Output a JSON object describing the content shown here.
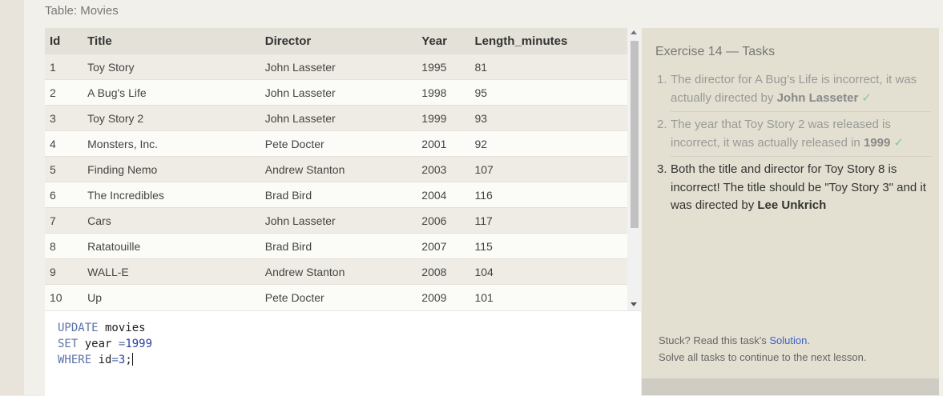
{
  "table_caption": "Table: Movies",
  "columns": [
    "Id",
    "Title",
    "Director",
    "Year",
    "Length_minutes"
  ],
  "rows": [
    [
      "1",
      "Toy Story",
      "John Lasseter",
      "1995",
      "81"
    ],
    [
      "2",
      "A Bug's Life",
      "John Lasseter",
      "1998",
      "95"
    ],
    [
      "3",
      "Toy Story 2",
      "John Lasseter",
      "1999",
      "93"
    ],
    [
      "4",
      "Monsters, Inc.",
      "Pete Docter",
      "2001",
      "92"
    ],
    [
      "5",
      "Finding Nemo",
      "Andrew Stanton",
      "2003",
      "107"
    ],
    [
      "6",
      "The Incredibles",
      "Brad Bird",
      "2004",
      "116"
    ],
    [
      "7",
      "Cars",
      "John Lasseter",
      "2006",
      "117"
    ],
    [
      "8",
      "Ratatouille",
      "Brad Bird",
      "2007",
      "115"
    ],
    [
      "9",
      "WALL-E",
      "Andrew Stanton",
      "2008",
      "104"
    ],
    [
      "10",
      "Up",
      "Pete Docter",
      "2009",
      "101"
    ]
  ],
  "editor": {
    "line1_kw": "UPDATE",
    "line1_rest": " movies",
    "line2_kw": "SET",
    "line2_ident": " year ",
    "line2_op": "=",
    "line2_num": "1999",
    "line3_kw": "WHERE",
    "line3_ident": " id",
    "line3_op": "=",
    "line3_num": "3",
    "line3_end": ";"
  },
  "tasks_panel": {
    "title": "Exercise 14 — Tasks",
    "tasks": [
      {
        "number": "1.",
        "text": "The director for A Bug's Life is incorrect, it was actually directed by ",
        "bold": "John Lasseter",
        "check": "✓"
      },
      {
        "number": "2.",
        "text": "The year that Toy Story 2 was released is incorrect, it was actually released in ",
        "bold": "1999",
        "check": "✓"
      },
      {
        "number": "3.",
        "text": "Both the title and director for Toy Story 8 is incorrect! The title should be \"Toy Story 3\" and it was directed by ",
        "bold": "Lee Unkrich"
      }
    ],
    "stuck_prefix": "Stuck? Read this task's ",
    "solution_link": "Solution",
    "stuck_suffix": ".",
    "solve_all": "Solve all tasks to continue to the next lesson."
  }
}
